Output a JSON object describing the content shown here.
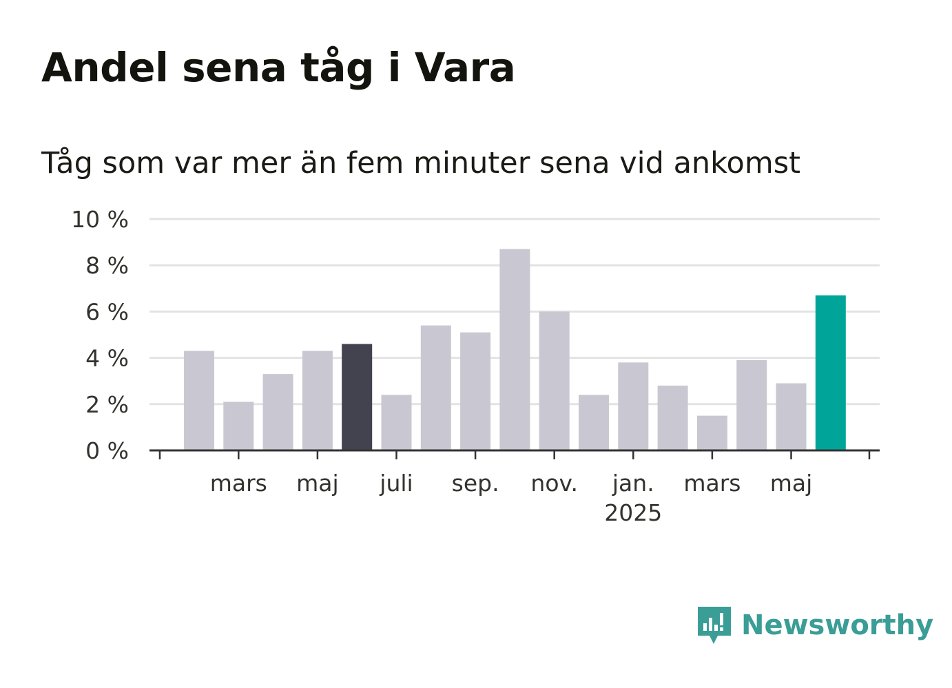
{
  "title": "Andel sena tåg i Vara",
  "subtitle": "Tåg som var mer än fem minuter sena vid ankomst",
  "brand": {
    "name": "Newsworthy",
    "color": "#3a9d96",
    "icon": "newsworthy-chart-bubble-icon"
  },
  "colors": {
    "default_bar": "#c9c8d2",
    "highlight_bar": "#43424f",
    "latest_bar": "#00a499",
    "grid": "#e3e3e3",
    "axis": "#333333"
  },
  "chart_data": {
    "type": "bar",
    "title": "Andel sena tåg i Vara",
    "subtitle": "Tåg som var mer än fem minuter sena vid ankomst",
    "xlabel": "",
    "ylabel": "",
    "ylim": [
      0,
      10
    ],
    "y_ticks": [
      0,
      2,
      4,
      6,
      8,
      10
    ],
    "y_tick_labels": [
      "0 %",
      "2 %",
      "4 %",
      "6 %",
      "8 %",
      "10 %"
    ],
    "grid": true,
    "categories": [
      "2024-02",
      "2024-03",
      "2024-04",
      "2024-05",
      "2024-06",
      "2024-07",
      "2024-08",
      "2024-09",
      "2024-10",
      "2024-11",
      "2024-12",
      "2025-01",
      "2025-02",
      "2025-03",
      "2025-04",
      "2025-05",
      "2025-06"
    ],
    "values": [
      4.3,
      2.1,
      3.3,
      4.3,
      4.6,
      2.4,
      5.4,
      5.1,
      8.7,
      6.0,
      2.4,
      3.8,
      2.8,
      1.5,
      3.9,
      2.9,
      6.7
    ],
    "highlight": {
      "2024-06": "dark",
      "2025-06": "teal"
    },
    "x_tick_labels": [
      {
        "label": "mars",
        "category": "2024-03"
      },
      {
        "label": "maj",
        "category": "2024-05"
      },
      {
        "label": "juli",
        "category": "2024-07"
      },
      {
        "label": "sep.",
        "category": "2024-09"
      },
      {
        "label": "nov.",
        "category": "2024-11"
      },
      {
        "label": "jan.",
        "sub": "2025",
        "category": "2025-01"
      },
      {
        "label": "mars",
        "category": "2025-03"
      },
      {
        "label": "maj",
        "category": "2025-05"
      }
    ]
  }
}
